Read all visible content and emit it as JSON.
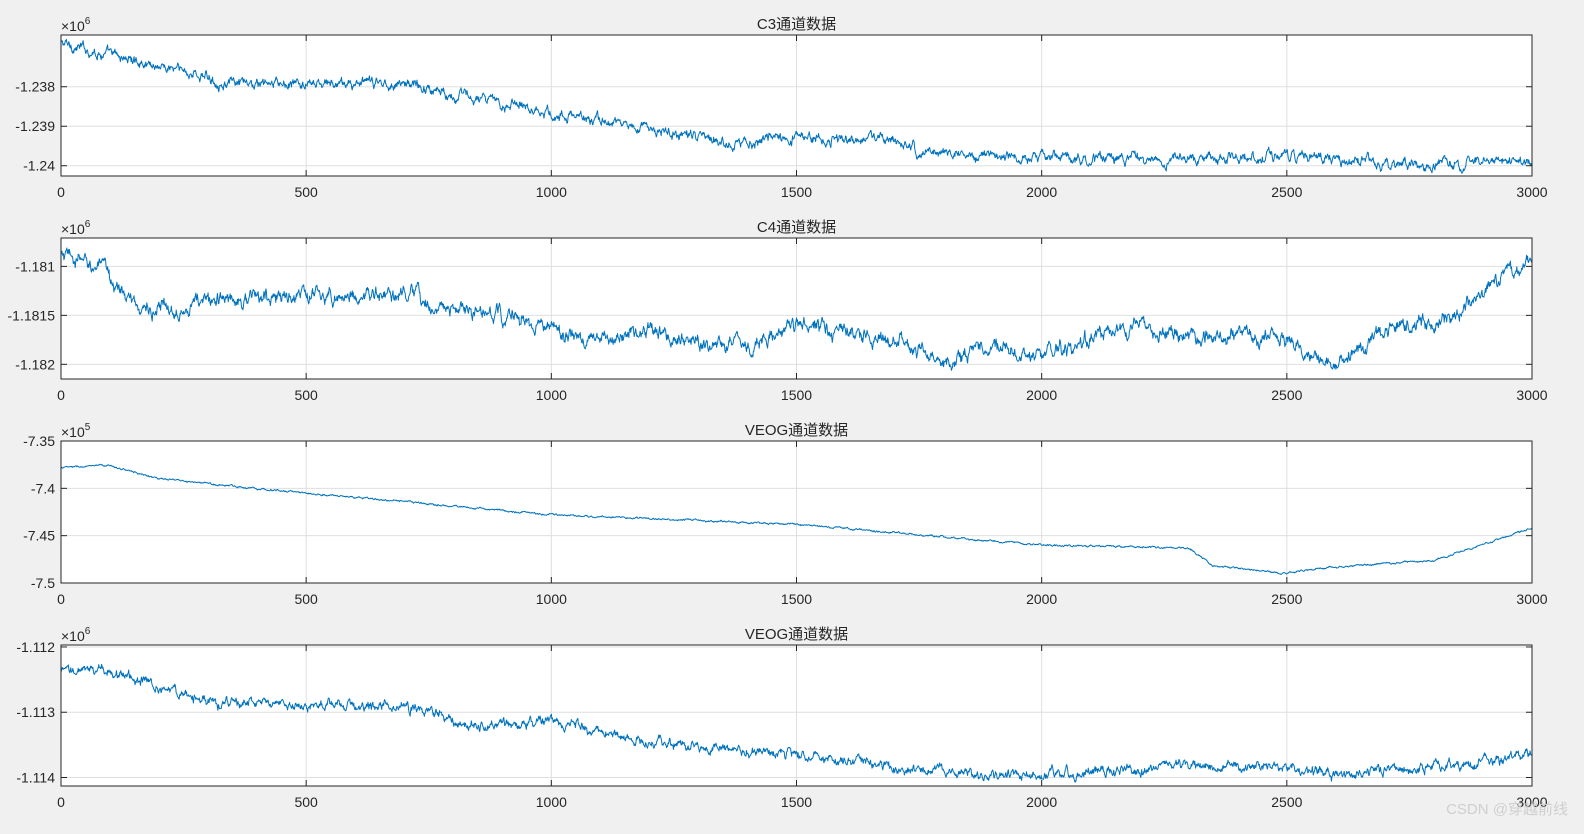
{
  "watermark": "CSDN @穿越前线",
  "colors": {
    "figure_bg": "#f0f0f0",
    "axes_bg": "#ffffff",
    "axes_edge": "#262626",
    "grid": "#dfdfdf",
    "line": "#0072bd"
  },
  "chart_data": [
    {
      "type": "line",
      "title": "C3通道数据",
      "xlim": [
        0,
        3000
      ],
      "ylim": [
        -1240260,
        -1236690
      ],
      "xticks": [
        0,
        500,
        1000,
        1500,
        2000,
        2500,
        3000
      ],
      "xtick_labels": [
        "0",
        "500",
        "1000",
        "1500",
        "2000",
        "2500",
        "3000"
      ],
      "yticks": [
        -1240000,
        -1239000,
        -1238000
      ],
      "ytick_labels": [
        "-1.24",
        "-1.239",
        "-1.238"
      ],
      "y_exponent": {
        "base": "×10",
        "power": "6"
      },
      "grid": true,
      "series": [
        {
          "x": [
            0,
            100,
            250,
            350,
            500,
            700,
            900,
            930,
            1000,
            1100,
            1350,
            1500,
            1700,
            1750,
            2000,
            2250,
            2500,
            2700,
            3000
          ],
          "y": [
            -1236900,
            -1237200,
            -1237600,
            -1237950,
            -1237950,
            -1237900,
            -1238450,
            -1238350,
            -1238700,
            -1238850,
            -1239400,
            -1239300,
            -1239350,
            -1239650,
            -1239800,
            -1239850,
            -1239700,
            -1240000,
            -1239900
          ],
          "noise": 120
        }
      ]
    },
    {
      "type": "line",
      "title": "C4通道数据",
      "xlim": [
        0,
        3000
      ],
      "ylim": [
        -1182150,
        -1180710
      ],
      "xticks": [
        0,
        500,
        1000,
        1500,
        2000,
        2500,
        3000
      ],
      "xtick_labels": [
        "0",
        "500",
        "1000",
        "1500",
        "2000",
        "2500",
        "3000"
      ],
      "yticks": [
        -1182000,
        -1181500,
        -1181000
      ],
      "ytick_labels": [
        "-1.182",
        "-1.1815",
        "-1.181"
      ],
      "y_exponent": {
        "base": "×10",
        "power": "6"
      },
      "grid": true,
      "series": [
        {
          "x": [
            0,
            80,
            150,
            200,
            300,
            500,
            700,
            800,
            900,
            1000,
            1100,
            1200,
            1300,
            1400,
            1500,
            1700,
            1800,
            1900,
            2000,
            2100,
            2200,
            2300,
            2400,
            2500,
            2600,
            2700,
            2800,
            3000
          ],
          "y": [
            -1180900,
            -1181000,
            -1181400,
            -1181450,
            -1181350,
            -1181300,
            -1181300,
            -1181450,
            -1181500,
            -1181650,
            -1181800,
            -1181650,
            -1181750,
            -1181800,
            -1181600,
            -1181750,
            -1182000,
            -1181800,
            -1181900,
            -1181750,
            -1181600,
            -1181700,
            -1181700,
            -1181750,
            -1182050,
            -1181650,
            -1181600,
            -1180950
          ],
          "noise": 70
        }
      ]
    },
    {
      "type": "line",
      "title": "VEOG通道数据",
      "xlim": [
        0,
        3000
      ],
      "ylim": [
        -750000,
        -735000
      ],
      "xticks": [
        0,
        500,
        1000,
        1500,
        2000,
        2500,
        3000
      ],
      "xtick_labels": [
        "0",
        "500",
        "1000",
        "1500",
        "2000",
        "2500",
        "3000"
      ],
      "yticks": [
        -750000,
        -745000,
        -740000,
        -735000
      ],
      "ytick_labels": [
        "-7.5",
        "-7.45",
        "-7.4",
        "-7.35"
      ],
      "y_exponent": {
        "base": "×10",
        "power": "5"
      },
      "grid": true,
      "series": [
        {
          "x": [
            0,
            100,
            200,
            500,
            1000,
            1500,
            2000,
            2300,
            2350,
            2500,
            2550,
            2800,
            3000
          ],
          "y": [
            -737800,
            -737600,
            -739000,
            -740500,
            -742800,
            -743800,
            -746000,
            -746300,
            -748200,
            -749000,
            -748500,
            -747600,
            -744200
          ],
          "noise": 90
        }
      ]
    },
    {
      "type": "line",
      "title": "VEOG通道数据",
      "xlim": [
        0,
        3000
      ],
      "ylim": [
        -1114130,
        -1111970
      ],
      "xticks": [
        0,
        500,
        1000,
        1500,
        2000,
        2500,
        3000
      ],
      "xtick_labels": [
        "0",
        "500",
        "1000",
        "1500",
        "2000",
        "2500",
        "3000"
      ],
      "yticks": [
        -1114000,
        -1113000,
        -1112000
      ],
      "ytick_labels": [
        "-1.114",
        "-1.113",
        "-1.112"
      ],
      "y_exponent": {
        "base": "×10",
        "power": "6"
      },
      "grid": true,
      "series": [
        {
          "x": [
            0,
            100,
            200,
            300,
            500,
            700,
            850,
            1000,
            1200,
            1500,
            1800,
            2000,
            2300,
            2500,
            2600,
            2800,
            3000
          ],
          "y": [
            -1112400,
            -1112350,
            -1112600,
            -1112850,
            -1112900,
            -1112900,
            -1113200,
            -1113150,
            -1113450,
            -1113650,
            -1113950,
            -1113950,
            -1113800,
            -1113850,
            -1113950,
            -1113850,
            -1113650
          ],
          "noise": 70
        }
      ]
    }
  ]
}
